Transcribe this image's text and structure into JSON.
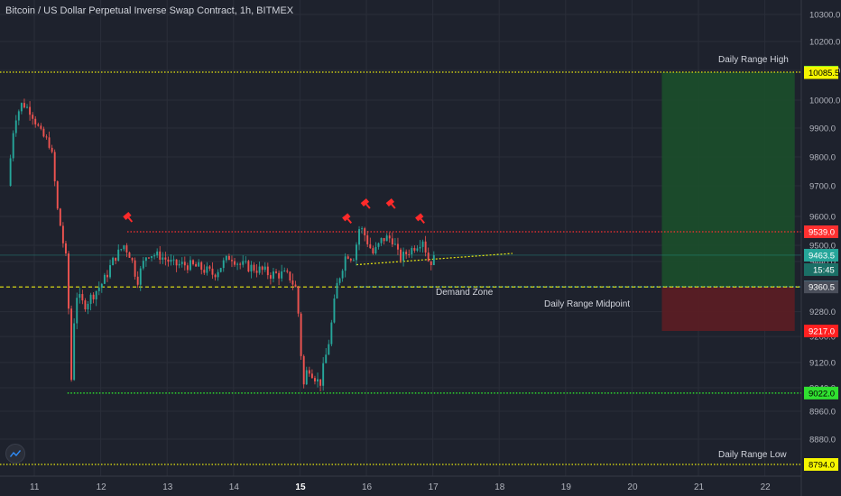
{
  "header": {
    "title": "Bitcoin / US Dollar Perpetual Inverse Swap Contract, 1h, BITMEX"
  },
  "colors": {
    "background": "#1e222d",
    "grid": "#2a2e39",
    "up": "#26a69a",
    "down": "#ef5350",
    "wick": "#787b86",
    "text": "#d1d4dc",
    "yellow_line": "#e8e810",
    "red_line": "#ff3030",
    "green_line": "#30ff30",
    "cyan_line": "#33ddff",
    "target_zone": "#1b4d2b",
    "stop_zone": "#5a1e24"
  },
  "chart_data": {
    "type": "candlestick",
    "title": "Bitcoin / US Dollar Perpetual Inverse Swap Contract, 1h, BITMEX",
    "x_tick_labels": [
      "11",
      "12",
      "13",
      "14",
      "15",
      "16",
      "17",
      "18",
      "19",
      "20",
      "21",
      "22"
    ],
    "bold_x_ticks": [
      "15"
    ],
    "y_tick_labels": [
      8880,
      8960,
      9040,
      9120,
      9200,
      9280,
      9360,
      9440,
      9500,
      9600,
      9700,
      9800,
      9900,
      10000,
      10100,
      10200,
      10300
    ],
    "ylim": [
      8780,
      10340
    ],
    "xlim": [
      10.6,
      22.45
    ],
    "current_price": 9463.5,
    "countdown": "15:45",
    "price_tags": [
      {
        "value": 10087.0,
        "label": "10087.0",
        "color": "#30e030",
        "text_color": "#000000"
      },
      {
        "value": 10085.5,
        "label": "10085.5",
        "color": "#f5f500",
        "text_color": "#000000"
      },
      {
        "value": 9539.0,
        "label": "9539.0",
        "color": "#ff3030",
        "text_color": "#ffffff"
      },
      {
        "value": 9463.5,
        "label": "9463.5",
        "color": "#26a69a",
        "text_color": "#ffffff"
      },
      {
        "value": 9361.0,
        "label": "9361.0",
        "color": "#33ddff",
        "text_color": "#000000"
      },
      {
        "value": 9360.5,
        "label": "9360.5",
        "color": "#4a4e5a",
        "text_color": "#ffffff"
      },
      {
        "value": 9217.0,
        "label": "9217.0",
        "color": "#ff2020",
        "text_color": "#ffffff"
      },
      {
        "value": 9022.0,
        "label": "9022.0",
        "color": "#30e030",
        "text_color": "#000000"
      },
      {
        "value": 8794.0,
        "label": "8794.0",
        "color": "#f5f500",
        "text_color": "#000000"
      }
    ],
    "levels": [
      {
        "name": "Daily Range High",
        "value": 10087.0,
        "color": "#e8e810",
        "style": "dotted"
      },
      {
        "name": "",
        "value": 9539.0,
        "color": "#ff3030",
        "style": "dotted"
      },
      {
        "name": "Demand Zone",
        "value": 9361.0,
        "color": "#33ddff",
        "style": "dotted"
      },
      {
        "name": "Daily Range Midpoint",
        "value": 9360.5,
        "color": "#e8e810",
        "style": "dashed"
      },
      {
        "name": "",
        "value": 9022.0,
        "color": "#30ff30",
        "style": "dotted"
      },
      {
        "name": "Daily Range Low",
        "value": 8794.0,
        "color": "#e8e810",
        "style": "dotted"
      }
    ],
    "position_box": {
      "x_start": 20.45,
      "x_end": 22.45,
      "entry": 9361.0,
      "target": 10087.0,
      "stop": 9217.0
    },
    "trendline": {
      "x1": 15.85,
      "y1": 9430,
      "x2": 18.2,
      "y2": 9470,
      "color": "#e8e810"
    },
    "pin_markers": [
      {
        "x": 12.42,
        "y": 9595
      },
      {
        "x": 15.72,
        "y": 9590
      },
      {
        "x": 16.0,
        "y": 9640
      },
      {
        "x": 16.38,
        "y": 9640
      },
      {
        "x": 16.82,
        "y": 9590
      }
    ],
    "anchors": [
      [
        10.6,
        9700
      ],
      [
        10.7,
        9930
      ],
      [
        10.82,
        9990
      ],
      [
        10.95,
        9960
      ],
      [
        11.1,
        9880
      ],
      [
        11.25,
        9840
      ],
      [
        11.35,
        9620
      ],
      [
        11.5,
        9420
      ],
      [
        11.55,
        9030
      ],
      [
        11.62,
        9340
      ],
      [
        11.75,
        9300
      ],
      [
        11.9,
        9340
      ],
      [
        12.05,
        9380
      ],
      [
        12.2,
        9450
      ],
      [
        12.35,
        9500
      ],
      [
        12.45,
        9460
      ],
      [
        12.55,
        9380
      ],
      [
        12.7,
        9470
      ],
      [
        12.9,
        9460
      ],
      [
        13.1,
        9430
      ],
      [
        13.3,
        9430
      ],
      [
        13.5,
        9420
      ],
      [
        13.7,
        9400
      ],
      [
        13.95,
        9460
      ],
      [
        14.1,
        9430
      ],
      [
        14.3,
        9420
      ],
      [
        14.45,
        9410
      ],
      [
        14.55,
        9400
      ],
      [
        14.75,
        9400
      ],
      [
        14.85,
        9390
      ],
      [
        14.95,
        9350
      ],
      [
        15.0,
        9200
      ],
      [
        15.05,
        9040
      ],
      [
        15.12,
        9110
      ],
      [
        15.3,
        9050
      ],
      [
        15.45,
        9200
      ],
      [
        15.55,
        9360
      ],
      [
        15.7,
        9470
      ],
      [
        15.8,
        9450
      ],
      [
        15.9,
        9560
      ],
      [
        16.0,
        9520
      ],
      [
        16.1,
        9470
      ],
      [
        16.25,
        9520
      ],
      [
        16.4,
        9520
      ],
      [
        16.5,
        9450
      ],
      [
        16.7,
        9490
      ],
      [
        16.85,
        9520
      ],
      [
        16.95,
        9430
      ],
      [
        17.02,
        9463.5
      ]
    ],
    "candles_per_day": 24
  },
  "annotations": {
    "daily_range_high": "Daily Range High",
    "demand_zone": "Demand Zone",
    "daily_range_midpoint": "Daily Range Midpoint",
    "daily_range_low": "Daily Range Low"
  },
  "icons": {
    "logo": "tradingview-logo-icon",
    "pin": "pin-marker-icon"
  }
}
